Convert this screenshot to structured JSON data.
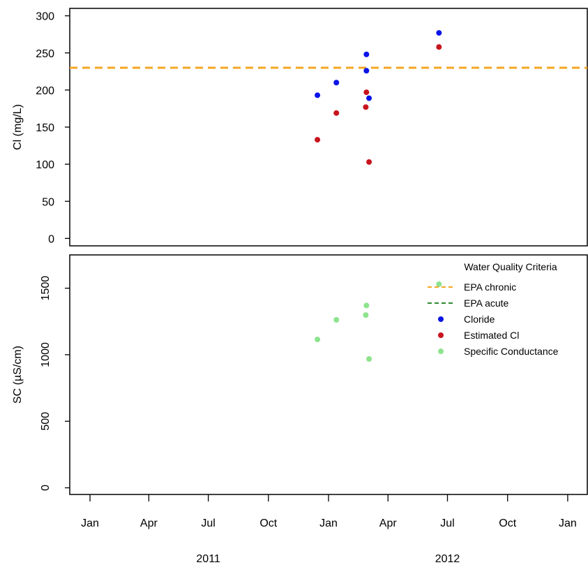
{
  "colors": {
    "chloride": "#0a14e8",
    "estimated_cl": "#c8141e",
    "specific_conductance": "#8ee38e",
    "epa_chronic": "#f5a623",
    "epa_acute": "#2e8b2e"
  },
  "chart_data": [
    {
      "type": "scatter",
      "ylabel": "Cl (mg/L)",
      "ylim": [
        -10,
        310
      ],
      "yticks": [
        0,
        50,
        100,
        150,
        200,
        250,
        300
      ],
      "xlim": [
        "2010-12-01",
        "2013-01-31"
      ],
      "x_ticks_shown": false,
      "reference_lines": [
        {
          "name": "EPA chronic",
          "y": 230,
          "style": "dashed"
        }
      ],
      "series": [
        {
          "name": "Cloride",
          "points": [
            {
              "x": "2011-12-15",
              "y": 193
            },
            {
              "x": "2012-01-13",
              "y": 210
            },
            {
              "x": "2012-02-28",
              "y": 248
            },
            {
              "x": "2012-02-28",
              "y": 226
            },
            {
              "x": "2012-03-03",
              "y": 189
            },
            {
              "x": "2012-06-18",
              "y": 277
            }
          ]
        },
        {
          "name": "Estimated Cl",
          "points": [
            {
              "x": "2011-12-15",
              "y": 133
            },
            {
              "x": "2012-01-13",
              "y": 169
            },
            {
              "x": "2012-02-28",
              "y": 197
            },
            {
              "x": "2012-02-27",
              "y": 177
            },
            {
              "x": "2012-03-03",
              "y": 103
            },
            {
              "x": "2012-06-18",
              "y": 258
            }
          ]
        }
      ]
    },
    {
      "type": "scatter",
      "ylabel": "SC (µS/cm)",
      "ylim": [
        -50,
        1750
      ],
      "yticks": [
        0,
        500,
        1000,
        1500
      ],
      "xlim": [
        "2010-12-01",
        "2013-01-31"
      ],
      "x_tick_labels": [
        "Jan",
        "Apr",
        "Jul",
        "Oct",
        "Jan",
        "Apr",
        "Jul",
        "Oct",
        "Jan"
      ],
      "x_tick_dates": [
        "2011-01-01",
        "2011-04-01",
        "2011-07-01",
        "2011-10-01",
        "2012-01-01",
        "2012-04-01",
        "2012-07-01",
        "2012-10-01",
        "2013-01-01"
      ],
      "year_labels": [
        {
          "label": "2011",
          "x": "2011-07-01"
        },
        {
          "label": "2012",
          "x": "2012-07-01"
        }
      ],
      "legend": {
        "title": "Water Quality Criteria",
        "placement": "top-right",
        "entries": [
          {
            "label": "EPA chronic",
            "kind": "dashed-line",
            "color": "#f5a623"
          },
          {
            "label": "EPA acute",
            "kind": "dashed-line",
            "color": "#2e8b2e"
          },
          {
            "label": "Cloride",
            "kind": "point",
            "color": "#0a14e8"
          },
          {
            "label": "Estimated Cl",
            "kind": "point",
            "color": "#c8141e"
          },
          {
            "label": "Specific Conductance",
            "kind": "point",
            "color": "#8ee38e"
          }
        ]
      },
      "series": [
        {
          "name": "Specific Conductance",
          "points": [
            {
              "x": "2011-12-15",
              "y": 1115
            },
            {
              "x": "2012-01-13",
              "y": 1262
            },
            {
              "x": "2012-02-28",
              "y": 1370
            },
            {
              "x": "2012-02-27",
              "y": 1298
            },
            {
              "x": "2012-03-03",
              "y": 968
            },
            {
              "x": "2012-06-18",
              "y": 1530
            }
          ]
        }
      ]
    }
  ]
}
